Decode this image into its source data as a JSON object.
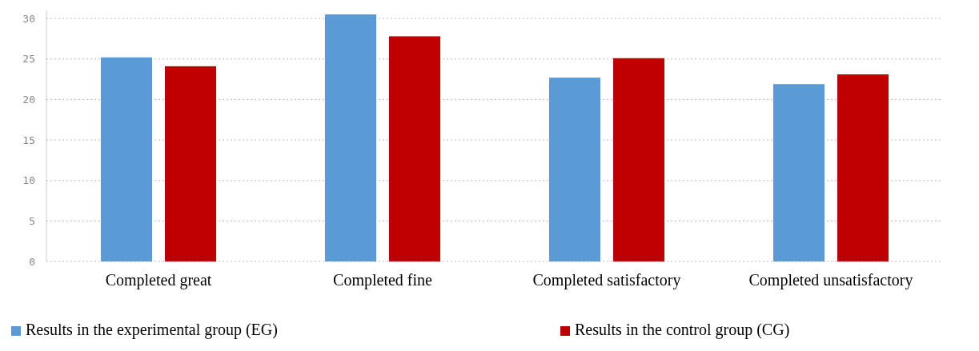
{
  "chart_data": {
    "type": "bar",
    "categories": [
      "Completed great",
      "Completed fine",
      "Completed satisfactory",
      "Completed unsatisfactory"
    ],
    "series": [
      {
        "name": "Results in the experimental group (EG)",
        "color": "#5b9bd5",
        "values": [
          25.2,
          30.5,
          22.7,
          21.9
        ]
      },
      {
        "name": "Results in the control group (CG)",
        "color": "#c00000",
        "values": [
          24.1,
          27.8,
          25.1,
          23.1
        ]
      }
    ],
    "ylim": [
      0,
      31
    ],
    "yticks": [
      0,
      5,
      10,
      15,
      20,
      25,
      30
    ],
    "grid": "y",
    "legend": "bottom"
  }
}
